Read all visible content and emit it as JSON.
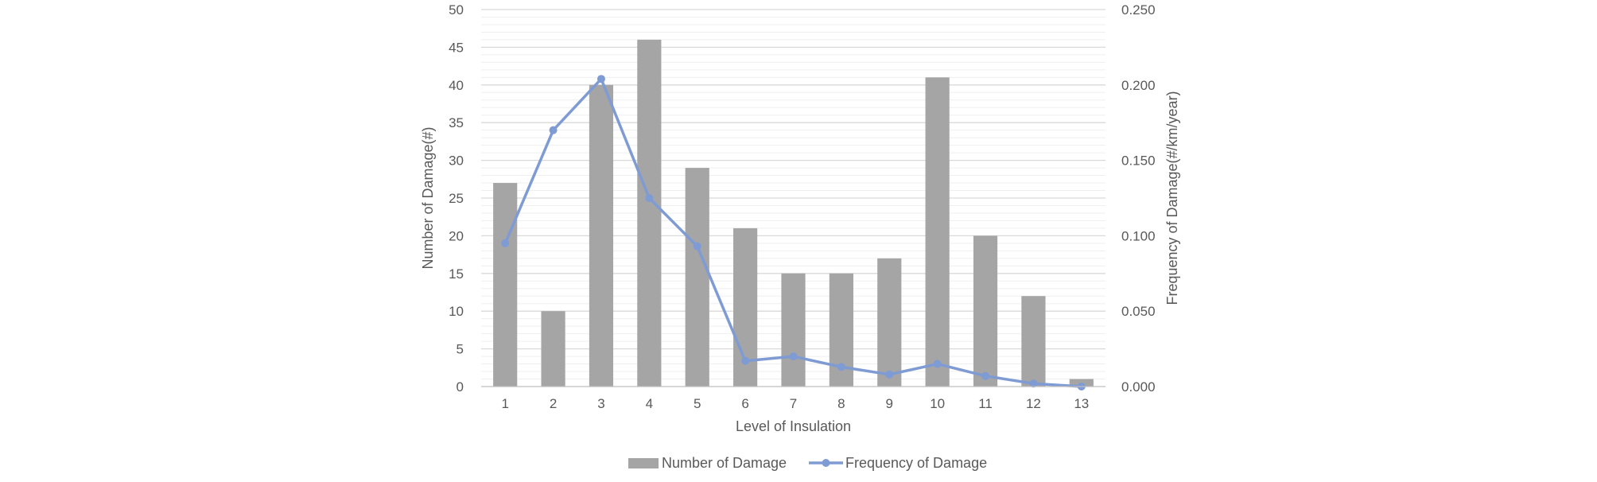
{
  "chart_data": {
    "type": "bar",
    "categories": [
      "1",
      "2",
      "3",
      "4",
      "5",
      "6",
      "7",
      "8",
      "9",
      "10",
      "11",
      "12",
      "13"
    ],
    "series": [
      {
        "name": "Number of Damage",
        "type": "bar",
        "axis": "left",
        "color": "#A5A5A5",
        "values": [
          27,
          10,
          40,
          46,
          29,
          21,
          15,
          15,
          17,
          41,
          20,
          12,
          1
        ]
      },
      {
        "name": "Frequency of Damage",
        "type": "line",
        "axis": "right",
        "color": "#7F9BD4",
        "values": [
          0.095,
          0.17,
          0.204,
          0.125,
          0.093,
          0.017,
          0.02,
          0.013,
          0.008,
          0.015,
          0.007,
          0.002,
          0.0
        ]
      }
    ],
    "xlabel": "Level of Insulation",
    "ylabel": "Number of Damage(#)",
    "y2label": "Frequency of Damage(#/km/year)",
    "ylim": [
      0,
      50
    ],
    "y2lim": [
      0,
      0.25
    ],
    "yticks": [
      "0",
      "5",
      "10",
      "15",
      "20",
      "25",
      "30",
      "35",
      "40",
      "45",
      "50"
    ],
    "y2ticks": [
      "0.000",
      "0.050",
      "0.100",
      "0.150",
      "0.200",
      "0.250"
    ],
    "grid": true,
    "legend_position": "bottom"
  }
}
